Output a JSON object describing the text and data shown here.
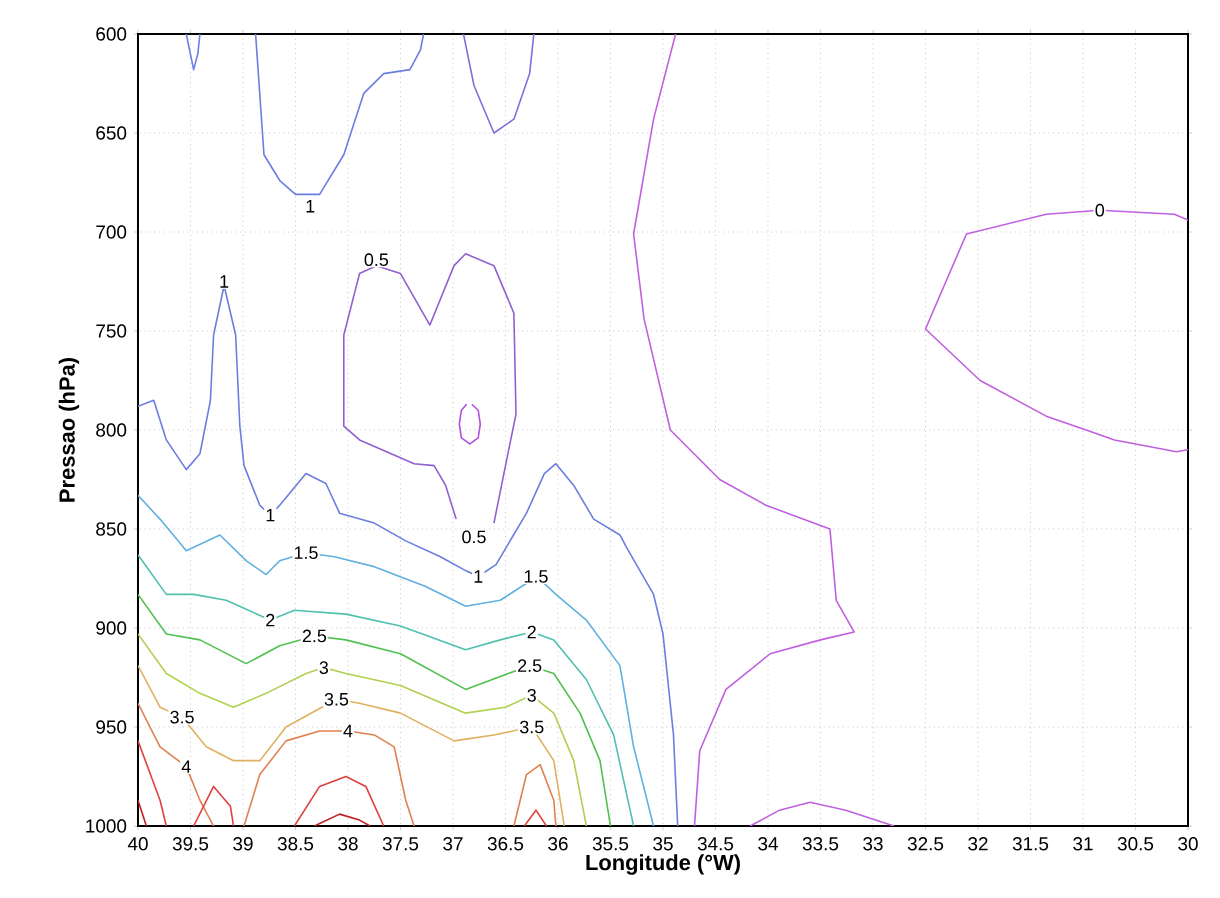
{
  "chart_data": {
    "type": "line",
    "xlabel": "Longitude (°W)",
    "ylabel": "Pressao (hPa)",
    "xlim": [
      40,
      30
    ],
    "ylim": [
      1000,
      600
    ],
    "xticks": [
      40,
      39.5,
      39,
      38.5,
      38,
      37.5,
      37,
      36.5,
      36,
      35.5,
      35,
      34.5,
      34,
      33.5,
      33,
      32.5,
      32,
      31.5,
      31,
      30.5,
      30
    ],
    "yticks": [
      600,
      650,
      700,
      750,
      800,
      850,
      900,
      950,
      1000
    ],
    "grid": true,
    "line_style": "solid",
    "series": [
      {
        "color": "#c060e0",
        "x": [
          34.88,
          35.09,
          35.28,
          35.18,
          34.93,
          34.46,
          34.02,
          33.41,
          33.35,
          33.18,
          33.5,
          33.98,
          34.4,
          34.65,
          34.7
        ],
        "values": [
          600,
          643,
          701,
          744,
          800,
          825,
          838,
          850,
          886,
          902,
          906,
          913,
          931,
          962,
          1000
        ]
      },
      {
        "color": "#c060e0",
        "x": [
          30,
          30.13,
          30.84,
          31.35,
          32.11,
          32.5,
          31.98,
          31.35,
          30.97,
          30.7,
          30.11,
          30
        ],
        "values": [
          694,
          691,
          689,
          691,
          701,
          749,
          775,
          793,
          800,
          805,
          811,
          810
        ]
      },
      {
        "color": "#c060e0",
        "x": [
          34.17,
          33.89,
          33.6,
          33.26,
          32.8
        ],
        "values": [
          1000,
          992,
          988,
          992,
          1000
        ]
      },
      {
        "color": "#9060d0",
        "x": [
          36.97,
          37.07,
          37.18,
          37.37,
          37.89,
          38.04,
          38.04,
          37.89,
          37.73,
          37.5,
          37.22,
          36.99,
          36.88,
          36.61,
          36.42,
          36.4,
          36.5,
          36.61
        ],
        "values": [
          845,
          828,
          818,
          817,
          805,
          798,
          752,
          721,
          717,
          721,
          747,
          717,
          711,
          717,
          741,
          792,
          818,
          847
        ]
      },
      {
        "color": "#b050e0",
        "x": [
          36.82,
          36.76,
          36.74,
          36.76,
          36.84,
          36.92,
          36.94,
          36.92,
          36.87
        ],
        "values": [
          787,
          790,
          797,
          804,
          807,
          804,
          797,
          790,
          787
        ]
      },
      {
        "color": "#6a7ee0",
        "x": [
          38.88,
          38.8,
          38.65,
          38.5,
          38.27,
          38.04,
          37.85,
          37.66,
          37.41,
          37.31,
          37.28
        ],
        "values": [
          600,
          661,
          674,
          681,
          681,
          661,
          630,
          620,
          618,
          608,
          600
        ]
      },
      {
        "color": "#6a7ee0",
        "x": [
          39.54,
          39.47,
          39.43,
          39.41
        ],
        "values": [
          600,
          618,
          610,
          600
        ]
      },
      {
        "color": "#7a70e0",
        "x": [
          36.9,
          36.8,
          36.61,
          36.42,
          36.27,
          36.23
        ],
        "values": [
          600,
          626,
          650,
          643,
          620,
          600
        ]
      },
      {
        "color": "#6a7ee0",
        "x": [
          40,
          39.85,
          39.73,
          39.54,
          39.41,
          39.31,
          39.28,
          39.18,
          39.07,
          39.03,
          38.99,
          38.84,
          38.74,
          38.65,
          38.4,
          38.21,
          38.08,
          37.75,
          37.45,
          37.12,
          36.88,
          36.76,
          36.59,
          36.3,
          36.13,
          36.02,
          35.85,
          35.66,
          35.41,
          35.35,
          35.09,
          35.0,
          34.9,
          34.86
        ],
        "values": [
          788,
          785,
          805,
          820,
          812,
          785,
          752,
          727,
          752,
          798,
          818,
          838,
          843,
          838,
          822,
          827,
          842,
          847,
          856,
          864,
          871,
          874,
          868,
          842,
          822,
          817,
          828,
          845,
          853,
          859,
          883,
          903,
          954,
          1000
        ]
      },
      {
        "color": "#60b0e0",
        "x": [
          40,
          39.79,
          39.54,
          39.22,
          38.97,
          38.78,
          38.65,
          38.4,
          38.13,
          37.75,
          37.26,
          36.88,
          36.55,
          36.2,
          36.02,
          35.73,
          35.41,
          35.28,
          35.09
        ],
        "values": [
          833,
          845,
          861,
          853,
          866,
          873,
          866,
          862,
          864,
          869,
          879,
          889,
          886,
          874,
          883,
          896,
          919,
          960,
          1000
        ]
      },
      {
        "color": "#50c0b0",
        "x": [
          40,
          39.73,
          39.47,
          39.16,
          38.74,
          38.51,
          38.02,
          37.5,
          36.88,
          36.55,
          36.25,
          36.04,
          35.73,
          35.47,
          35.28
        ],
        "values": [
          863,
          883,
          883,
          886,
          896,
          891,
          893,
          899,
          911,
          906,
          902,
          906,
          926,
          954,
          1000
        ]
      },
      {
        "color": "#50c050",
        "x": [
          40,
          39.73,
          39.41,
          38.97,
          38.65,
          38.32,
          38.02,
          37.5,
          36.88,
          36.27,
          36.04,
          35.79,
          35.6,
          35.5
        ],
        "values": [
          883,
          903,
          906,
          918,
          909,
          904,
          906,
          913,
          931,
          919,
          923,
          943,
          967,
          1000
        ]
      },
      {
        "color": "#b0d050",
        "x": [
          40,
          39.73,
          39.41,
          39.09,
          38.78,
          38.4,
          38.23,
          38.02,
          37.5,
          36.88,
          36.5,
          36.25,
          36.04,
          35.85,
          35.73
        ],
        "values": [
          903,
          923,
          933,
          940,
          933,
          923,
          920,
          923,
          929,
          943,
          940,
          934,
          943,
          967,
          1000
        ]
      },
      {
        "color": "#e0b060",
        "x": [
          40,
          39.79,
          39.58,
          39.35,
          39.09,
          38.84,
          38.59,
          38.11,
          37.89,
          37.5,
          36.99,
          36.61,
          36.25,
          36.04,
          35.94
        ],
        "values": [
          919,
          940,
          945,
          960,
          967,
          967,
          950,
          936,
          938,
          943,
          957,
          954,
          950,
          967,
          1000
        ]
      },
      {
        "color": "#e08050",
        "x": [
          40,
          39.79,
          39.54,
          39.41,
          39.28
        ],
        "values": [
          938,
          960,
          970,
          987,
          1000
        ]
      },
      {
        "color": "#e08050",
        "x": [
          38.99,
          38.84,
          38.59,
          38.27,
          38.0,
          37.75,
          37.56,
          37.45,
          37.37
        ],
        "values": [
          1000,
          974,
          957,
          952,
          952,
          954,
          960,
          987,
          1000
        ]
      },
      {
        "color": "#e08050",
        "x": [
          36.42,
          36.3,
          36.17,
          36.04,
          36.02
        ],
        "values": [
          1000,
          974,
          969,
          987,
          1000
        ]
      },
      {
        "color": "#e04040",
        "x": [
          40,
          39.79,
          39.73
        ],
        "values": [
          957,
          987,
          1000
        ]
      },
      {
        "color": "#e04040",
        "x": [
          39.47,
          39.28,
          39.12,
          39.09
        ],
        "values": [
          1000,
          980,
          990,
          1000
        ]
      },
      {
        "color": "#e04040",
        "x": [
          38.51,
          38.27,
          38.02,
          37.83,
          37.66
        ],
        "values": [
          1000,
          980,
          975,
          980,
          1000
        ]
      },
      {
        "color": "#e04040",
        "x": [
          36.32,
          36.21,
          36.11
        ],
        "values": [
          1000,
          992,
          1000
        ]
      },
      {
        "color": "#c02020",
        "x": [
          38.32,
          38.08,
          37.89,
          37.79
        ],
        "values": [
          1000,
          994,
          997,
          1000
        ]
      },
      {
        "color": "#c02020",
        "x": [
          40,
          39.92
        ],
        "values": [
          987,
          1000
        ]
      }
    ],
    "annotations": [
      {
        "text": "1",
        "x": 38.36,
        "y": 687
      },
      {
        "text": "0.5",
        "x": 37.73,
        "y": 714
      },
      {
        "text": "1",
        "x": 39.18,
        "y": 725
      },
      {
        "text": "0",
        "x": 30.84,
        "y": 689
      },
      {
        "text": "1",
        "x": 38.74,
        "y": 843
      },
      {
        "text": "0.5",
        "x": 36.8,
        "y": 854
      },
      {
        "text": "1",
        "x": 36.76,
        "y": 874
      },
      {
        "text": "1.5",
        "x": 38.4,
        "y": 862
      },
      {
        "text": "1.5",
        "x": 36.21,
        "y": 874
      },
      {
        "text": "2",
        "x": 38.74,
        "y": 896
      },
      {
        "text": "2",
        "x": 36.25,
        "y": 902
      },
      {
        "text": "2.5",
        "x": 38.32,
        "y": 904
      },
      {
        "text": "2.5",
        "x": 36.27,
        "y": 919
      },
      {
        "text": "3",
        "x": 38.23,
        "y": 920
      },
      {
        "text": "3",
        "x": 36.25,
        "y": 934
      },
      {
        "text": "3.5",
        "x": 39.58,
        "y": 945
      },
      {
        "text": "3.5",
        "x": 38.11,
        "y": 936
      },
      {
        "text": "3.5",
        "x": 36.25,
        "y": 950
      },
      {
        "text": "4",
        "x": 39.54,
        "y": 970
      },
      {
        "text": "4",
        "x": 38.0,
        "y": 952
      }
    ]
  }
}
